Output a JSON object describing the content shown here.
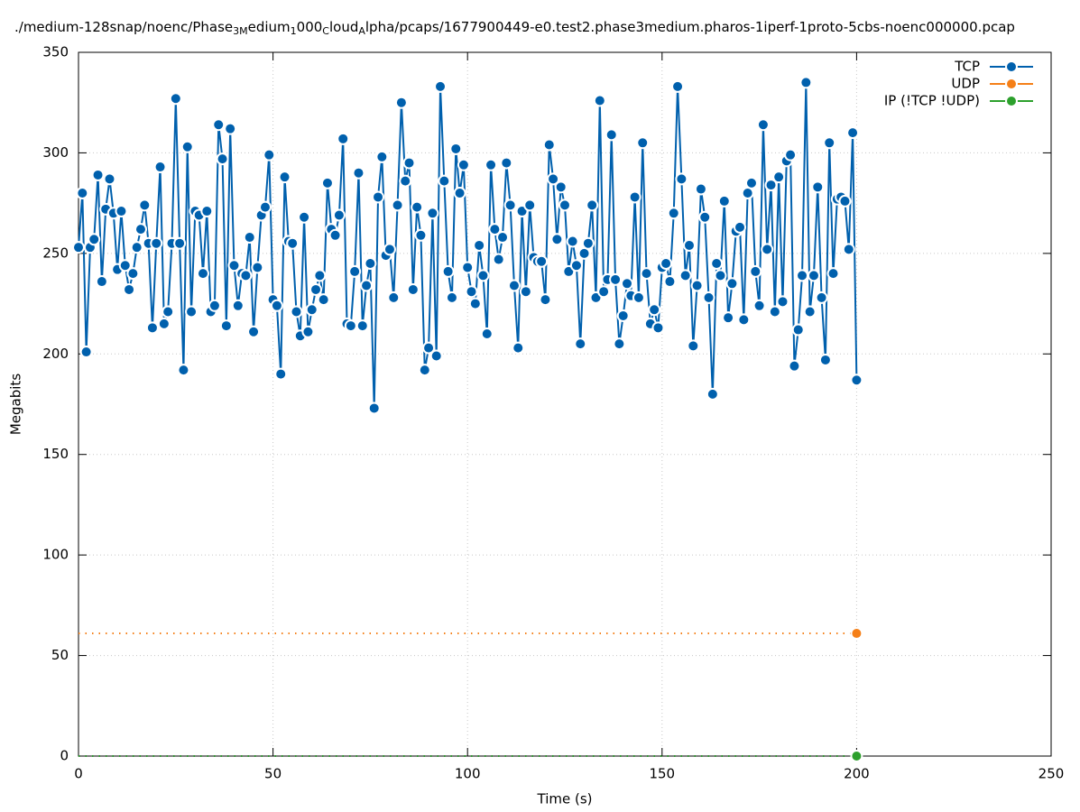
{
  "chart_data": {
    "type": "line",
    "title": [
      "./medium-128snap/noenc/Phase",
      "3M",
      "edium",
      "1",
      "000",
      "C",
      "loud",
      "A",
      "lpha/pcaps/1677900449-e0.test2.phase3medium.pharos-1iperf-1proto-5cbs-noenc000000.pcap"
    ],
    "x_label": "Time (s)",
    "y_label": "Megabits",
    "xlim": [
      0,
      250
    ],
    "ylim": [
      0,
      350
    ],
    "xticks": [
      0,
      50,
      100,
      150,
      200,
      250
    ],
    "yticks": [
      0,
      50,
      100,
      150,
      200,
      250,
      300,
      350
    ],
    "grid": true,
    "legend": "top-right",
    "x": [
      0,
      1,
      2,
      3,
      4,
      5,
      6,
      7,
      8,
      9,
      10,
      11,
      12,
      13,
      14,
      15,
      16,
      17,
      18,
      19,
      20,
      21,
      22,
      23,
      24,
      25,
      26,
      27,
      28,
      29,
      30,
      31,
      32,
      33,
      34,
      35,
      36,
      37,
      38,
      39,
      40,
      41,
      42,
      43,
      44,
      45,
      46,
      47,
      48,
      49,
      50,
      51,
      52,
      53,
      54,
      55,
      56,
      57,
      58,
      59,
      60,
      61,
      62,
      63,
      64,
      65,
      66,
      67,
      68,
      69,
      70,
      71,
      72,
      73,
      74,
      75,
      76,
      77,
      78,
      79,
      80,
      81,
      82,
      83,
      84,
      85,
      86,
      87,
      88,
      89,
      90,
      91,
      92,
      93,
      94,
      95,
      96,
      97,
      98,
      99,
      100,
      101,
      102,
      103,
      104,
      105,
      106,
      107,
      108,
      109,
      110,
      111,
      112,
      113,
      114,
      115,
      116,
      117,
      118,
      119,
      120,
      121,
      122,
      123,
      124,
      125,
      126,
      127,
      128,
      129,
      130,
      131,
      132,
      133,
      134,
      135,
      136,
      137,
      138,
      139,
      140,
      141,
      142,
      143,
      144,
      145,
      146,
      147,
      148,
      149,
      150,
      151,
      152,
      153,
      154,
      155,
      156,
      157,
      158,
      159,
      160,
      161,
      162,
      163,
      164,
      165,
      166,
      167,
      168,
      169,
      170,
      171,
      172,
      173,
      174,
      175,
      176,
      177,
      178,
      179,
      180,
      181,
      182,
      183,
      184,
      185,
      186,
      187,
      188,
      189,
      190,
      191,
      192,
      193,
      194,
      195,
      196,
      197,
      198,
      199,
      200
    ],
    "series": [
      {
        "name": "TCP",
        "color": "#0060ad",
        "marker": "every",
        "values": [
          253,
          280,
          201,
          253,
          257,
          289,
          236,
          272,
          287,
          270,
          242,
          271,
          244,
          232,
          240,
          253,
          262,
          274,
          255,
          213,
          255,
          293,
          215,
          221,
          255,
          327,
          255,
          192,
          303,
          221,
          271,
          269,
          240,
          271,
          221,
          224,
          314,
          297,
          214,
          312,
          244,
          224,
          240,
          239,
          258,
          211,
          243,
          269,
          273,
          299,
          227,
          224,
          190,
          288,
          256,
          255,
          221,
          209,
          268,
          211,
          222,
          232,
          239,
          227,
          285,
          262,
          259,
          269,
          307,
          215,
          214,
          241,
          290,
          214,
          234,
          245,
          173,
          278,
          298,
          249,
          252,
          228,
          274,
          325,
          286,
          295,
          232,
          273,
          259,
          192,
          203,
          270,
          199,
          333,
          286,
          241,
          228,
          302,
          280,
          294,
          243,
          231,
          225,
          254,
          239,
          210,
          294,
          262,
          247,
          258,
          295,
          274,
          234,
          203,
          271,
          231,
          274,
          248,
          246,
          246,
          227,
          304,
          287,
          257,
          283,
          274,
          241,
          256,
          244,
          205,
          250,
          255,
          274,
          228,
          326,
          231,
          237,
          309,
          237,
          205,
          219,
          235,
          229,
          278,
          228,
          305,
          240,
          215,
          222,
          213,
          243,
          245,
          236,
          270,
          333,
          287,
          239,
          254,
          204,
          234,
          282,
          268,
          228,
          180,
          245,
          239,
          276,
          218,
          235,
          261,
          263,
          217,
          280,
          285,
          241,
          224,
          314,
          252,
          284,
          221,
          288,
          226,
          296,
          299,
          194,
          212,
          239,
          335,
          221,
          239,
          283,
          228,
          197,
          305,
          240,
          277,
          278,
          276,
          252,
          310,
          187
        ]
      },
      {
        "name": "UDP",
        "color": "#f57f17",
        "marker": "last",
        "values": [
          61,
          61,
          61,
          61,
          61,
          61,
          61,
          61,
          61,
          61,
          61,
          61,
          61,
          61,
          61,
          61,
          61,
          61,
          61,
          61,
          61,
          61,
          61,
          61,
          61,
          61,
          61,
          61,
          61,
          61,
          61,
          61,
          61,
          61,
          61,
          61,
          61,
          61,
          61,
          61,
          61,
          61,
          61,
          61,
          61,
          61,
          61,
          61,
          61,
          61,
          61,
          61,
          61,
          61,
          61,
          61,
          61,
          61,
          61,
          61,
          61,
          61,
          61,
          61,
          61,
          61,
          61,
          61,
          61,
          61,
          61,
          61,
          61,
          61,
          61,
          61,
          61,
          61,
          61,
          61,
          61,
          61,
          61,
          61,
          61,
          61,
          61,
          61,
          61,
          61,
          61,
          61,
          61,
          61,
          61,
          61,
          61,
          61,
          61,
          61,
          61,
          61,
          61,
          61,
          61,
          61,
          61,
          61,
          61,
          61,
          61,
          61,
          61,
          61,
          61,
          61,
          61,
          61,
          61,
          61,
          61,
          61,
          61,
          61,
          61,
          61,
          61,
          61,
          61,
          61,
          61,
          61,
          61,
          61,
          61,
          61,
          61,
          61,
          61,
          61,
          61,
          61,
          61,
          61,
          61,
          61,
          61,
          61,
          61,
          61,
          61,
          61,
          61,
          61,
          61,
          61,
          61,
          61,
          61,
          61,
          61,
          61,
          61,
          61,
          61,
          61,
          61,
          61,
          61,
          61,
          61,
          61,
          61,
          61,
          61,
          61,
          61,
          61,
          61,
          61,
          61,
          61,
          61,
          61,
          61,
          61,
          61,
          61,
          61,
          61,
          61,
          61,
          61,
          61,
          61,
          61,
          61,
          61,
          61,
          61,
          61
        ]
      },
      {
        "name": "IP (!TCP  !UDP)",
        "color": "#2ca02c",
        "marker": "last",
        "values": [
          0,
          0,
          0,
          0,
          0,
          0,
          0,
          0,
          0,
          0,
          0,
          0,
          0,
          0,
          0,
          0,
          0,
          0,
          0,
          0,
          0,
          0,
          0,
          0,
          0,
          0,
          0,
          0,
          0,
          0,
          0,
          0,
          0,
          0,
          0,
          0,
          0,
          0,
          0,
          0,
          0,
          0,
          0,
          0,
          0,
          0,
          0,
          0,
          0,
          0,
          0,
          0,
          0,
          0,
          0,
          0,
          0,
          0,
          0,
          0,
          0,
          0,
          0,
          0,
          0,
          0,
          0,
          0,
          0,
          0,
          0,
          0,
          0,
          0,
          0,
          0,
          0,
          0,
          0,
          0,
          0,
          0,
          0,
          0,
          0,
          0,
          0,
          0,
          0,
          0,
          0,
          0,
          0,
          0,
          0,
          0,
          0,
          0,
          0,
          0,
          0,
          0,
          0,
          0,
          0,
          0,
          0,
          0,
          0,
          0,
          0,
          0,
          0,
          0,
          0,
          0,
          0,
          0,
          0,
          0,
          0,
          0,
          0,
          0,
          0,
          0,
          0,
          0,
          0,
          0,
          0,
          0,
          0,
          0,
          0,
          0,
          0,
          0,
          0,
          0,
          0,
          0,
          0,
          0,
          0,
          0,
          0,
          0,
          0,
          0,
          0,
          0,
          0,
          0,
          0,
          0,
          0,
          0,
          0,
          0,
          0,
          0,
          0,
          0,
          0,
          0,
          0,
          0,
          0,
          0,
          0,
          0,
          0,
          0,
          0,
          0,
          0,
          0,
          0,
          0,
          0,
          0,
          0,
          0,
          0,
          0,
          0,
          0,
          0,
          0,
          0,
          0,
          0,
          0,
          0,
          0,
          0,
          0,
          0,
          0,
          0
        ]
      }
    ]
  }
}
